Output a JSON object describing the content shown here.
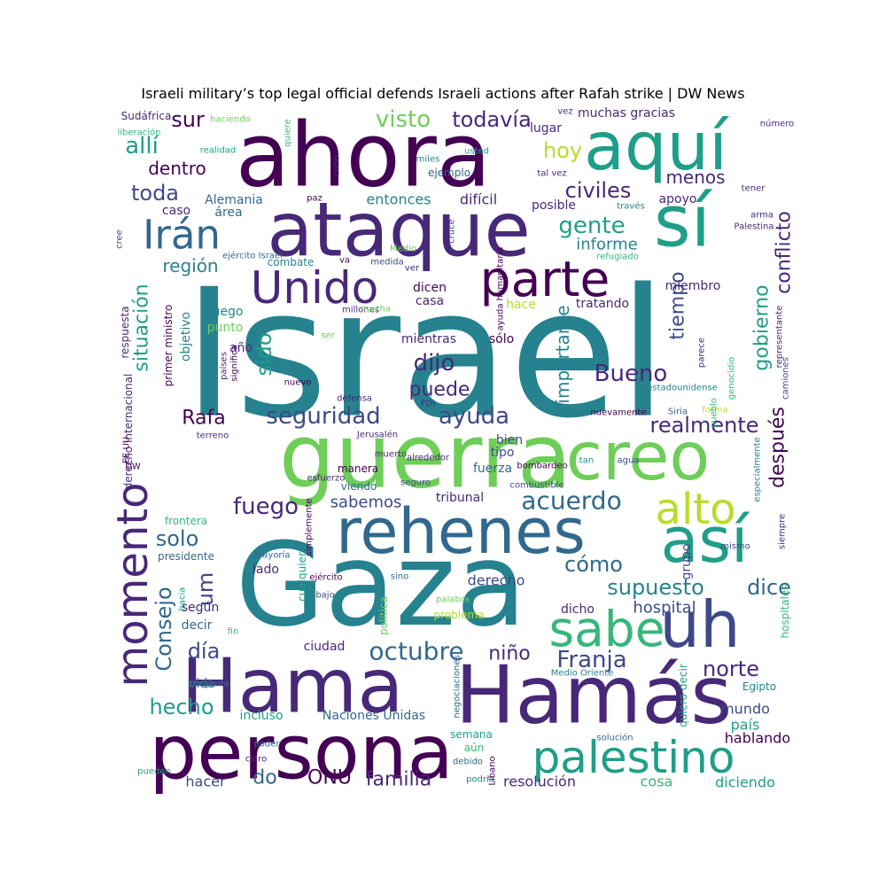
{
  "chart_data": {
    "type": "wordcloud",
    "title": "Israeli military’s top legal official defends Israeli actions after Rafah strike | DW News",
    "colormap": "viridis",
    "words": [
      {
        "text": "Israel",
        "weight": 100
      },
      {
        "text": "ahora",
        "weight": 75
      },
      {
        "text": "Gaza",
        "weight": 88
      },
      {
        "text": "guerra",
        "weight": 68
      },
      {
        "text": "ataque",
        "weight": 66
      },
      {
        "text": "rehenes",
        "weight": 62
      },
      {
        "text": "Hamás",
        "weight": 64
      },
      {
        "text": "Hama",
        "weight": 62
      },
      {
        "text": "persona",
        "weight": 62
      },
      {
        "text": "aquí",
        "weight": 58
      },
      {
        "text": "sí",
        "weight": 56
      },
      {
        "text": "creo",
        "weight": 56
      },
      {
        "text": "así",
        "weight": 52
      },
      {
        "text": "uh",
        "weight": 50
      },
      {
        "text": "parte",
        "weight": 46
      },
      {
        "text": "Unido",
        "weight": 44
      },
      {
        "text": "sabe",
        "weight": 42
      },
      {
        "text": "palestino",
        "weight": 42
      },
      {
        "text": "Irán",
        "weight": 40
      },
      {
        "text": "momento",
        "weight": 38
      },
      {
        "text": "alto",
        "weight": 36
      },
      {
        "text": "acuerdo",
        "weight": 30
      },
      {
        "text": "octubre",
        "weight": 28
      },
      {
        "text": "seguridad",
        "weight": 26
      },
      {
        "text": "ayuda",
        "weight": 26
      },
      {
        "text": "realmente",
        "weight": 26
      },
      {
        "text": "civiles",
        "weight": 26
      },
      {
        "text": "visto",
        "weight": 26
      },
      {
        "text": "todavía",
        "weight": 24
      },
      {
        "text": "allí",
        "weight": 26
      },
      {
        "text": "sur",
        "weight": 26
      },
      {
        "text": "toda",
        "weight": 26
      },
      {
        "text": "hoy",
        "weight": 24
      },
      {
        "text": "dentro",
        "weight": 22
      },
      {
        "text": "menos",
        "weight": 22
      },
      {
        "text": "gente",
        "weight": 26
      },
      {
        "text": "conflicto",
        "weight": 26
      },
      {
        "text": "gobierno",
        "weight": 26
      },
      {
        "text": "tiempo",
        "weight": 26
      },
      {
        "text": "dijo",
        "weight": 26
      },
      {
        "text": "Bueno",
        "weight": 28
      },
      {
        "text": "situación",
        "weight": 24
      },
      {
        "text": "región",
        "weight": 22
      },
      {
        "text": "sido",
        "weight": 24
      },
      {
        "text": "puede",
        "weight": 22
      },
      {
        "text": "Rafa",
        "weight": 24
      },
      {
        "text": "importante",
        "weight": 20
      },
      {
        "text": "después",
        "weight": 22
      },
      {
        "text": "fuego",
        "weight": 26
      },
      {
        "text": "solo",
        "weight": 26
      },
      {
        "text": "um",
        "weight": 26
      },
      {
        "text": "Consejo",
        "weight": 26
      },
      {
        "text": "supuesto",
        "weight": 26
      },
      {
        "text": "dice",
        "weight": 26
      },
      {
        "text": "cómo",
        "weight": 24
      },
      {
        "text": "sabemos",
        "weight": 20
      },
      {
        "text": "Franja",
        "weight": 26
      },
      {
        "text": "norte",
        "weight": 26
      },
      {
        "text": "día",
        "weight": 26
      },
      {
        "text": "hecho",
        "weight": 26
      },
      {
        "text": "niño",
        "weight": 22
      },
      {
        "text": "familia",
        "weight": 22
      },
      {
        "text": "ONU",
        "weight": 22
      },
      {
        "text": "do",
        "weight": 22
      },
      {
        "text": "informe",
        "weight": 20
      },
      {
        "text": "hospital",
        "weight": 18
      },
      {
        "text": "mundo",
        "weight": 16
      },
      {
        "text": "país",
        "weight": 16
      },
      {
        "text": "hablando",
        "weight": 16
      },
      {
        "text": "diciendo",
        "weight": 16
      },
      {
        "text": "cosa",
        "weight": 16
      },
      {
        "text": "resolución",
        "weight": 16
      },
      {
        "text": "hacer",
        "weight": 16
      },
      {
        "text": "Naciones Unidas",
        "weight": 14
      },
      {
        "text": "incluso",
        "weight": 14
      },
      {
        "text": "vida",
        "weight": 14
      },
      {
        "text": "decir",
        "weight": 14
      },
      {
        "text": "según",
        "weight": 14
      },
      {
        "text": "presidente",
        "weight": 12
      },
      {
        "text": "frontera",
        "weight": 12
      },
      {
        "text": "lado",
        "weight": 14
      },
      {
        "text": "ciudad",
        "weight": 14
      },
      {
        "text": "derecho",
        "weight": 16
      },
      {
        "text": "dicho",
        "weight": 14
      },
      {
        "text": "grupo",
        "weight": 14
      },
      {
        "text": "mientras",
        "weight": 14
      },
      {
        "text": "sólo",
        "weight": 14
      },
      {
        "text": "casa",
        "weight": 14
      },
      {
        "text": "dicen",
        "weight": 14
      },
      {
        "text": "hace",
        "weight": 14
      },
      {
        "text": "tratando",
        "weight": 14
      },
      {
        "text": "miembro",
        "weight": 14
      },
      {
        "text": "apoyo",
        "weight": 14
      },
      {
        "text": "entonces",
        "weight": 16
      },
      {
        "text": "difícil",
        "weight": 16
      },
      {
        "text": "posible",
        "weight": 14
      },
      {
        "text": "lugar",
        "weight": 14
      },
      {
        "text": "muchas gracias",
        "weight": 14
      },
      {
        "text": "Alemania",
        "weight": 14
      },
      {
        "text": "caso",
        "weight": 14
      },
      {
        "text": "área",
        "weight": 14
      },
      {
        "text": "combate",
        "weight": 12
      },
      {
        "text": "luego",
        "weight": 14
      },
      {
        "text": "punto",
        "weight": 14
      },
      {
        "text": "año",
        "weight": 14
      },
      {
        "text": "objetivo",
        "weight": 14
      },
      {
        "text": "respuesta",
        "weight": 12
      },
      {
        "text": "primer ministro",
        "weight": 12
      },
      {
        "text": "tipo",
        "weight": 14
      },
      {
        "text": "fuerza",
        "weight": 14
      },
      {
        "text": "bien",
        "weight": 14
      },
      {
        "text": "tribunal",
        "weight": 14
      },
      {
        "text": "manera",
        "weight": 12
      },
      {
        "text": "viendo",
        "weight": 12
      },
      {
        "text": "simplemente",
        "weight": 10
      },
      {
        "text": "cualquier",
        "weight": 12
      },
      {
        "text": "política",
        "weight": 12
      },
      {
        "text": "sino",
        "weight": 10
      },
      {
        "text": "palabra",
        "weight": 10
      },
      {
        "text": "problema",
        "weight": 12
      },
      {
        "text": "ejército",
        "weight": 10
      },
      {
        "text": "mayoría",
        "weight": 10
      },
      {
        "text": "bajo",
        "weight": 10
      },
      {
        "text": "hacia",
        "weight": 10
      },
      {
        "text": "fin",
        "weight": 10
      },
      {
        "text": "pregunta",
        "weight": 10
      },
      {
        "text": "semana",
        "weight": 12
      },
      {
        "text": "aún",
        "weight": 12
      },
      {
        "text": "debido",
        "weight": 10
      },
      {
        "text": "podría",
        "weight": 10
      },
      {
        "text": "Líbano",
        "weight": 10
      },
      {
        "text": "poder",
        "weight": 10
      },
      {
        "text": "claro",
        "weight": 10
      },
      {
        "text": "pueden",
        "weight": 10
      },
      {
        "text": "quiero decir",
        "weight": 12
      },
      {
        "text": "Egipto",
        "weight": 12
      },
      {
        "text": "hospitales",
        "weight": 12
      },
      {
        "text": "solución",
        "weight": 10
      },
      {
        "text": "negociaciones",
        "weight": 10
      },
      {
        "text": "Medio Oriente",
        "weight": 10
      },
      {
        "text": "mismo",
        "weight": 10
      },
      {
        "text": "siempre",
        "weight": 10
      },
      {
        "text": "especialmente",
        "weight": 10
      },
      {
        "text": "agua",
        "weight": 10
      },
      {
        "text": "tan",
        "weight": 10
      },
      {
        "text": "bombardeo",
        "weight": 10
      },
      {
        "text": "combustible",
        "weight": 10
      },
      {
        "text": "alrededor",
        "weight": 10
      },
      {
        "text": "esfuerzo",
        "weight": 10
      },
      {
        "text": "muerto",
        "weight": 10
      },
      {
        "text": "seguro",
        "weight": 10
      },
      {
        "text": "nuevamente",
        "weight": 10
      },
      {
        "text": "Siria",
        "weight": 10
      },
      {
        "text": "forma",
        "weight": 10
      },
      {
        "text": "pueblo",
        "weight": 10
      },
      {
        "text": "parece",
        "weight": 10
      },
      {
        "text": "genocidio",
        "weight": 10
      },
      {
        "text": "estadounidense",
        "weight": 10
      },
      {
        "text": "camiones",
        "weight": 10
      },
      {
        "text": "representante",
        "weight": 10
      },
      {
        "text": "arma",
        "weight": 10
      },
      {
        "text": "Palestina",
        "weight": 10
      },
      {
        "text": "tener",
        "weight": 10
      },
      {
        "text": "través",
        "weight": 10
      },
      {
        "text": "número",
        "weight": 10
      },
      {
        "text": "vez",
        "weight": 10
      },
      {
        "text": "tal vez",
        "weight": 10
      },
      {
        "text": "cabo",
        "weight": 10
      },
      {
        "text": "usted",
        "weight": 10
      },
      {
        "text": "miles",
        "weight": 12
      },
      {
        "text": "ejemplo",
        "weight": 10
      },
      {
        "text": "paz",
        "weight": 12
      },
      {
        "text": "quiere",
        "weight": 10
      },
      {
        "text": "realidad",
        "weight": 10
      },
      {
        "text": "liberación",
        "weight": 10
      },
      {
        "text": "Sudáfrica",
        "weight": 10
      },
      {
        "text": "haciendo",
        "weight": 12
      },
      {
        "text": "cree",
        "weight": 10
      },
      {
        "text": "ejército Israel",
        "weight": 10
      },
      {
        "text": "va",
        "weight": 10
      },
      {
        "text": "medida",
        "weight": 10
      },
      {
        "text": "Medio",
        "weight": 10
      },
      {
        "text": "ver",
        "weight": 10
      },
      {
        "text": "cruce",
        "weight": 10
      },
      {
        "text": "ayuda humanitaria",
        "weight": 10
      },
      {
        "text": "refugiado",
        "weight": 10
      },
      {
        "text": "millones",
        "weight": 10
      },
      {
        "text": "mucha",
        "weight": 10
      },
      {
        "text": "ser",
        "weight": 10
      },
      {
        "text": "significa",
        "weight": 10
      },
      {
        "text": "países",
        "weight": 10
      },
      {
        "text": "nuevo",
        "weight": 10
      },
      {
        "text": "defensa",
        "weight": 10
      },
      {
        "text": "FDI",
        "weight": 10
      },
      {
        "text": "terreno",
        "weight": 10
      },
      {
        "text": "Jerusalén",
        "weight": 10
      },
      {
        "text": "derecho internacional",
        "weight": 10
      },
      {
        "text": "EE UU",
        "weight": 12
      },
      {
        "text": "DW",
        "weight": 10
      },
      {
        "text": "gran",
        "weight": 10
      }
    ]
  }
}
